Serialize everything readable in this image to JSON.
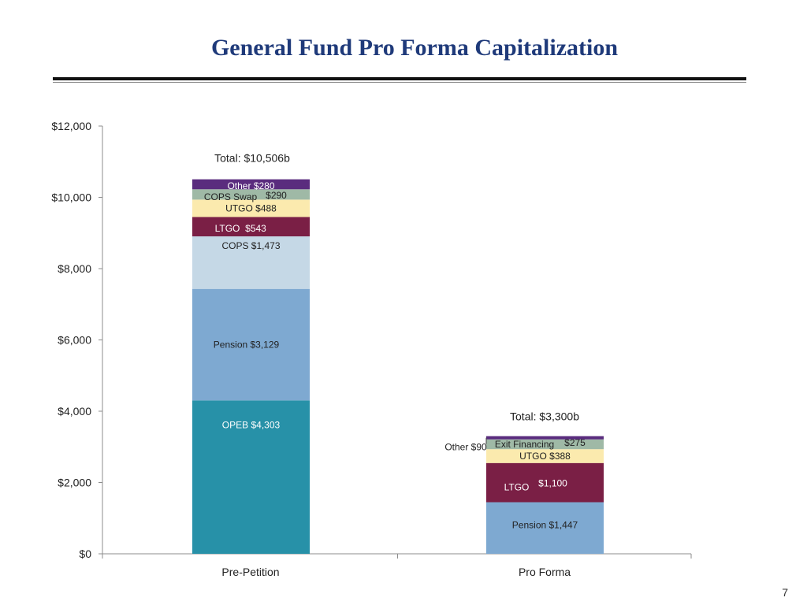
{
  "slide": {
    "title": "General Fund Pro Forma Capitalization",
    "page_number": "7"
  },
  "chart_data": {
    "type": "bar",
    "stacked": true,
    "categories": [
      "Pre-Petition",
      "Pro Forma"
    ],
    "ylim": [
      0,
      12000
    ],
    "yticks": [
      0,
      2000,
      4000,
      6000,
      8000,
      10000,
      12000
    ],
    "ytick_labels": [
      "$0",
      "$2,000",
      "$4,000",
      "$6,000",
      "$8,000",
      "$10,000",
      "$12,000"
    ],
    "grid": false,
    "totals": [
      "Total: $10,506b",
      "Total: $3,300b"
    ],
    "stacks": [
      [
        {
          "name": "OPEB",
          "value": 4303,
          "label": "OPEB $4,303",
          "color": "#2791a8"
        },
        {
          "name": "Pension",
          "value": 3129,
          "label": "Pension $3,129",
          "color": "#7ea9d1"
        },
        {
          "name": "COPS",
          "value": 1473,
          "label": "COPS $1,473",
          "color": "#c5d8e6"
        },
        {
          "name": "LTGO",
          "value": 543,
          "label": "LTGO",
          "value_label": "$543",
          "color": "#7a1f45"
        },
        {
          "name": "UTGO",
          "value": 488,
          "label": "UTGO $488",
          "color": "#fbeaae"
        },
        {
          "name": "COPS Swap",
          "value": 290,
          "label": "COPS Swap",
          "value_label": "$290",
          "color": "#9fb9a6"
        },
        {
          "name": "Other",
          "value": 280,
          "label": "Other $280",
          "color": "#5a2c7e"
        }
      ],
      [
        {
          "name": "Pension",
          "value": 1447,
          "label": "Pension $1,447",
          "color": "#7ea9d1"
        },
        {
          "name": "LTGO",
          "value": 1100,
          "label": "LTGO",
          "value_label": "$1,100",
          "color": "#7a1f45"
        },
        {
          "name": "UTGO",
          "value": 388,
          "label": "UTGO $388",
          "color": "#fbeaae"
        },
        {
          "name": "Exit Financing",
          "value": 275,
          "label": "Exit Financing",
          "value_label": "$275",
          "color": "#9fb9a6"
        },
        {
          "name": "Other",
          "value": 90,
          "label": "Other $90",
          "color": "#5a2c7e"
        }
      ]
    ]
  }
}
